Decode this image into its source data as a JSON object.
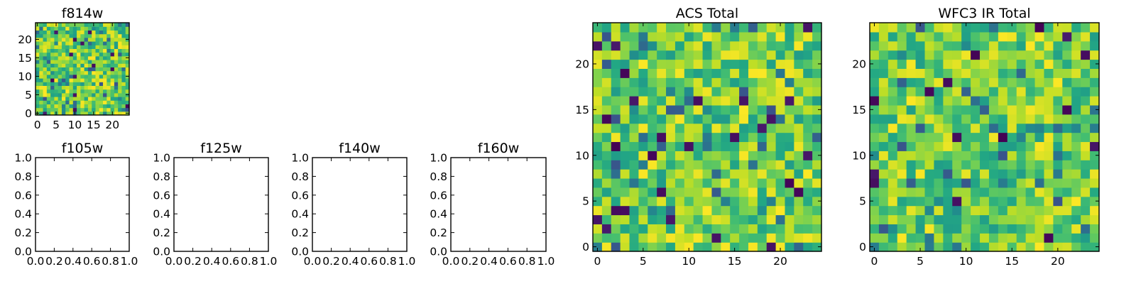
{
  "figure": {
    "description_free": true
  },
  "chart_data": [
    {
      "id": "f814w",
      "type": "heatmap",
      "title": "f814w",
      "grid_size": 25,
      "colormap": "viridis",
      "xlim": [
        -0.5,
        24.5
      ],
      "ylim": [
        -0.5,
        24.5
      ],
      "xticks": [
        0,
        5,
        10,
        15,
        20
      ],
      "xtick_labels": [
        "0",
        "5",
        "10",
        "15",
        "20"
      ],
      "yticks": [
        0,
        5,
        10,
        15,
        20
      ],
      "ytick_labels": [
        "0",
        "5",
        "10",
        "15",
        "20"
      ],
      "seed": 814,
      "value_range": [
        0,
        1
      ],
      "note_values": "synthetic random noise field, values approximated"
    },
    {
      "id": "f105w",
      "type": "empty",
      "title": "f105w",
      "xlim": [
        0,
        1
      ],
      "ylim": [
        0,
        1
      ],
      "xticks": [
        0,
        0.2,
        0.4,
        0.6,
        0.8,
        1.0
      ],
      "xtick_labels": [
        "0.0",
        "0.2",
        "0.4",
        "0.6",
        "0.8",
        "1.0"
      ],
      "yticks": [
        0,
        0.2,
        0.4,
        0.6,
        0.8,
        1.0
      ],
      "ytick_labels": [
        "0.0",
        "0.2",
        "0.4",
        "0.6",
        "0.8",
        "1.0"
      ]
    },
    {
      "id": "f125w",
      "type": "empty",
      "title": "f125w",
      "xlim": [
        0,
        1
      ],
      "ylim": [
        0,
        1
      ],
      "xticks": [
        0,
        0.2,
        0.4,
        0.6,
        0.8,
        1.0
      ],
      "xtick_labels": [
        "0.0",
        "0.2",
        "0.4",
        "0.6",
        "0.8",
        "1.0"
      ],
      "yticks": [
        0,
        0.2,
        0.4,
        0.6,
        0.8,
        1.0
      ],
      "ytick_labels": [
        "0.0",
        "0.2",
        "0.4",
        "0.6",
        "0.8",
        "1.0"
      ]
    },
    {
      "id": "f140w",
      "type": "empty",
      "title": "f140w",
      "xlim": [
        0,
        1
      ],
      "ylim": [
        0,
        1
      ],
      "xticks": [
        0,
        0.2,
        0.4,
        0.6,
        0.8,
        1.0
      ],
      "xtick_labels": [
        "0.0",
        "0.2",
        "0.4",
        "0.6",
        "0.8",
        "1.0"
      ],
      "yticks": [
        0,
        0.2,
        0.4,
        0.6,
        0.8,
        1.0
      ],
      "ytick_labels": [
        "0.0",
        "0.2",
        "0.4",
        "0.6",
        "0.8",
        "1.0"
      ]
    },
    {
      "id": "f160w",
      "type": "empty",
      "title": "f160w",
      "xlim": [
        0,
        1
      ],
      "ylim": [
        0,
        1
      ],
      "xticks": [
        0,
        0.2,
        0.4,
        0.6,
        0.8,
        1.0
      ],
      "xtick_labels": [
        "0.0",
        "0.2",
        "0.4",
        "0.6",
        "0.8",
        "1.0"
      ],
      "yticks": [
        0,
        0.2,
        0.4,
        0.6,
        0.8,
        1.0
      ],
      "ytick_labels": [
        "0.0",
        "0.2",
        "0.4",
        "0.6",
        "0.8",
        "1.0"
      ]
    },
    {
      "id": "acs-total",
      "type": "heatmap",
      "title": "ACS Total",
      "grid_size": 25,
      "colormap": "viridis",
      "xlim": [
        -0.5,
        24.5
      ],
      "ylim": [
        -0.5,
        24.5
      ],
      "xticks": [
        0,
        5,
        10,
        15,
        20
      ],
      "xtick_labels": [
        "0",
        "5",
        "10",
        "15",
        "20"
      ],
      "yticks": [
        0,
        5,
        10,
        15,
        20
      ],
      "ytick_labels": [
        "0",
        "5",
        "10",
        "15",
        "20"
      ],
      "seed": 1234,
      "value_range": [
        0,
        1
      ],
      "note_values": "synthetic random noise field, values approximated"
    },
    {
      "id": "wfc3-ir-total",
      "type": "heatmap",
      "title": "WFC3 IR Total",
      "grid_size": 25,
      "colormap": "viridis",
      "xlim": [
        -0.5,
        24.5
      ],
      "ylim": [
        -0.5,
        24.5
      ],
      "xticks": [
        0,
        5,
        10,
        15,
        20
      ],
      "xtick_labels": [
        "0",
        "5",
        "10",
        "15",
        "20"
      ],
      "yticks": [
        0,
        5,
        10,
        15,
        20
      ],
      "ytick_labels": [
        "0",
        "5",
        "10",
        "15",
        "20"
      ],
      "seed": 4321,
      "value_range": [
        0,
        1
      ],
      "note_values": "synthetic random noise field, values approximated"
    }
  ]
}
